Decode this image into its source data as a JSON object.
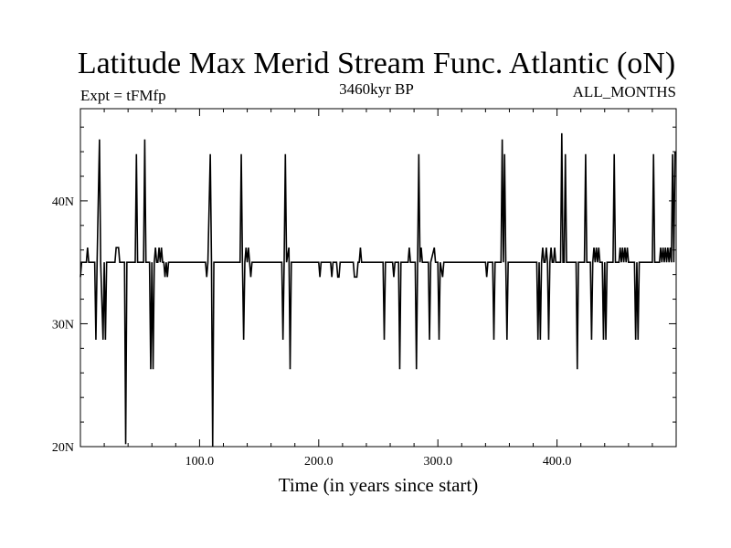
{
  "chart_data": {
    "type": "line",
    "title": "Latitude Max Merid Stream Func. Atlantic (oN)",
    "subtitle_left": "Expt = tFMfp",
    "subtitle_center": "3460kyr BP",
    "subtitle_right": "ALL_MONTHS",
    "xlabel": "Time (in years since start)",
    "ylabel": "",
    "xlim": [
      0,
      500
    ],
    "ylim": [
      20,
      47.5
    ],
    "xticks": [
      {
        "value": 100,
        "label": "100.0"
      },
      {
        "value": 200,
        "label": "200.0"
      },
      {
        "value": 300,
        "label": "300.0"
      },
      {
        "value": 400,
        "label": "400.0"
      }
    ],
    "yticks": [
      {
        "value": 20,
        "label": "20N"
      },
      {
        "value": 30,
        "label": "30N"
      },
      {
        "value": 40,
        "label": "40N"
      }
    ],
    "grid": false,
    "series": [
      {
        "values": [
          [
            0,
            33.8
          ],
          [
            1,
            35
          ],
          [
            5,
            35
          ],
          [
            6,
            36.2
          ],
          [
            7,
            35
          ],
          [
            12,
            35
          ],
          [
            13,
            28.7
          ],
          [
            14,
            35
          ],
          [
            16,
            45
          ],
          [
            17,
            35
          ],
          [
            19,
            28.7
          ],
          [
            20,
            35
          ],
          [
            21,
            28.7
          ],
          [
            22,
            35
          ],
          [
            29,
            35
          ],
          [
            30,
            36.2
          ],
          [
            32,
            36.2
          ],
          [
            33,
            35
          ],
          [
            37,
            35
          ],
          [
            38,
            20.2
          ],
          [
            39,
            35
          ],
          [
            46,
            35
          ],
          [
            47,
            43.8
          ],
          [
            48,
            35
          ],
          [
            53,
            35
          ],
          [
            54,
            45
          ],
          [
            55,
            35
          ],
          [
            58,
            35
          ],
          [
            59,
            26.3
          ],
          [
            60,
            35
          ],
          [
            61,
            26.3
          ],
          [
            62,
            35
          ],
          [
            63,
            36.2
          ],
          [
            64,
            35
          ],
          [
            65,
            35
          ],
          [
            66,
            36.2
          ],
          [
            67,
            35
          ],
          [
            68,
            36.2
          ],
          [
            69,
            35
          ],
          [
            70,
            35
          ],
          [
            71,
            33.8
          ],
          [
            72,
            35
          ],
          [
            73,
            33.8
          ],
          [
            74,
            35
          ],
          [
            105,
            35
          ],
          [
            106,
            33.8
          ],
          [
            107,
            35
          ],
          [
            109,
            43.8
          ],
          [
            110,
            35
          ],
          [
            111,
            20
          ],
          [
            112,
            35
          ],
          [
            134,
            35
          ],
          [
            135,
            43.8
          ],
          [
            136,
            35
          ],
          [
            137,
            28.7
          ],
          [
            138,
            35
          ],
          [
            139,
            36.2
          ],
          [
            140,
            35
          ],
          [
            141,
            36.2
          ],
          [
            142,
            35
          ],
          [
            143,
            33.8
          ],
          [
            144,
            35
          ],
          [
            169,
            35
          ],
          [
            170,
            28.7
          ],
          [
            171,
            35
          ],
          [
            172,
            43.8
          ],
          [
            173,
            35
          ],
          [
            175,
            36.2
          ],
          [
            176,
            26.3
          ],
          [
            177,
            35
          ],
          [
            200,
            35
          ],
          [
            201,
            33.8
          ],
          [
            202,
            35
          ],
          [
            210,
            35
          ],
          [
            211,
            33.8
          ],
          [
            212,
            35
          ],
          [
            215,
            35
          ],
          [
            216,
            33.8
          ],
          [
            217,
            33.8
          ],
          [
            218,
            35
          ],
          [
            229,
            35
          ],
          [
            230,
            33.8
          ],
          [
            232,
            33.8
          ],
          [
            233,
            35
          ],
          [
            234,
            35
          ],
          [
            235,
            36.2
          ],
          [
            236,
            35
          ],
          [
            254,
            35
          ],
          [
            255,
            28.7
          ],
          [
            256,
            35
          ],
          [
            262,
            35
          ],
          [
            263,
            33.8
          ],
          [
            264,
            35
          ],
          [
            267,
            35
          ],
          [
            268,
            26.3
          ],
          [
            269,
            35
          ],
          [
            275,
            35
          ],
          [
            276,
            36.2
          ],
          [
            277,
            35
          ],
          [
            281,
            35
          ],
          [
            282,
            26.3
          ],
          [
            283,
            35
          ],
          [
            284,
            43.8
          ],
          [
            285,
            35
          ],
          [
            286,
            36.2
          ],
          [
            287,
            35
          ],
          [
            292,
            35
          ],
          [
            293,
            28.7
          ],
          [
            294,
            35
          ],
          [
            297,
            36.2
          ],
          [
            298,
            35
          ],
          [
            300,
            35
          ],
          [
            301,
            28.7
          ],
          [
            302,
            35
          ],
          [
            304,
            33.8
          ],
          [
            305,
            35
          ],
          [
            340,
            35
          ],
          [
            341,
            33.8
          ],
          [
            342,
            35
          ],
          [
            346,
            35
          ],
          [
            347,
            28.7
          ],
          [
            348,
            35
          ],
          [
            353,
            35
          ],
          [
            354,
            45
          ],
          [
            355,
            35
          ],
          [
            356,
            43.8
          ],
          [
            357,
            35
          ],
          [
            358,
            28.7
          ],
          [
            359,
            35
          ],
          [
            383,
            35
          ],
          [
            384,
            28.7
          ],
          [
            385,
            35
          ],
          [
            386,
            28.7
          ],
          [
            387,
            35
          ],
          [
            388,
            36.2
          ],
          [
            389,
            35
          ],
          [
            390,
            35
          ],
          [
            391,
            36.2
          ],
          [
            392,
            35
          ],
          [
            393,
            28.7
          ],
          [
            394,
            35
          ],
          [
            395,
            36.2
          ],
          [
            396,
            35
          ],
          [
            397,
            35
          ],
          [
            398,
            36.2
          ],
          [
            399,
            35
          ],
          [
            403,
            35
          ],
          [
            404,
            45.5
          ],
          [
            405,
            35
          ],
          [
            406,
            35
          ],
          [
            407,
            43.8
          ],
          [
            408,
            35
          ],
          [
            416,
            35
          ],
          [
            417,
            26.3
          ],
          [
            418,
            35
          ],
          [
            423,
            35
          ],
          [
            424,
            43.8
          ],
          [
            425,
            35
          ],
          [
            428,
            35
          ],
          [
            429,
            28.7
          ],
          [
            430,
            35
          ],
          [
            431,
            36.2
          ],
          [
            432,
            35
          ],
          [
            433,
            36.2
          ],
          [
            434,
            35
          ],
          [
            435,
            36.2
          ],
          [
            436,
            35
          ],
          [
            438,
            35
          ],
          [
            439,
            28.7
          ],
          [
            440,
            35
          ],
          [
            441,
            28.7
          ],
          [
            442,
            35
          ],
          [
            447,
            35
          ],
          [
            448,
            43.8
          ],
          [
            449,
            35
          ],
          [
            452,
            35
          ],
          [
            453,
            36.2
          ],
          [
            454,
            35
          ],
          [
            455,
            36.2
          ],
          [
            456,
            35
          ],
          [
            457,
            36.2
          ],
          [
            458,
            35
          ],
          [
            459,
            36.2
          ],
          [
            460,
            35
          ],
          [
            465,
            35
          ],
          [
            466,
            28.7
          ],
          [
            467,
            35
          ],
          [
            468,
            28.7
          ],
          [
            469,
            35
          ],
          [
            480,
            35
          ],
          [
            481,
            43.8
          ],
          [
            482,
            35
          ],
          [
            486,
            35
          ],
          [
            487,
            36.2
          ],
          [
            488,
            35
          ],
          [
            489,
            36.2
          ],
          [
            490,
            35
          ],
          [
            491,
            36.2
          ],
          [
            492,
            35
          ],
          [
            493,
            36.2
          ],
          [
            494,
            35
          ],
          [
            495,
            36.2
          ],
          [
            496,
            35
          ],
          [
            497,
            43.8
          ],
          [
            498,
            35
          ],
          [
            499,
            44
          ]
        ]
      }
    ]
  }
}
